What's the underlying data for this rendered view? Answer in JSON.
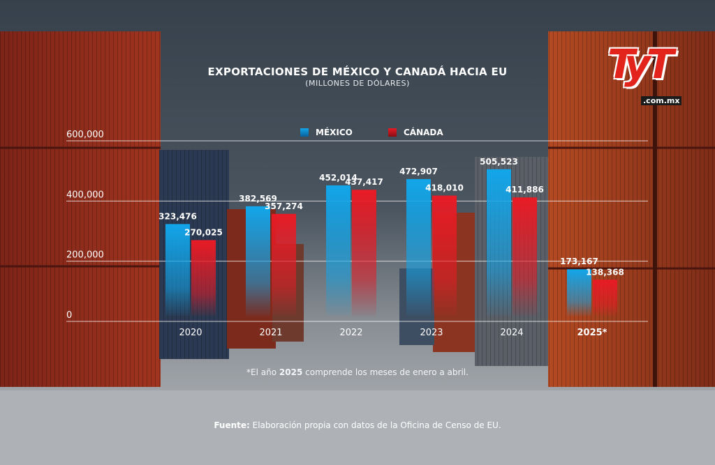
{
  "header": {
    "title": "EXPORTACIONES DE MÉXICO Y CANADÁ HACIA EU",
    "subtitle": "(MILLONES DE DÓLARES)"
  },
  "logo": {
    "brand": "TyT",
    "domain": ".com.mx"
  },
  "legend": [
    {
      "label": "MÉXICO",
      "color": "#12a3e6"
    },
    {
      "label": "CÁNADA",
      "color": "#e11b24"
    }
  ],
  "footer": {
    "note_pre": "*El año ",
    "note_bold": "2025",
    "note_post": " comprende los meses de enero a abril.",
    "source_label": "Fuente:",
    "source_text": " Elaboración propia con datos de la Oficina de Censo de EU."
  },
  "chart_data": {
    "type": "bar",
    "title": "EXPORTACIONES DE MÉXICO Y CANADÁ HACIA EU",
    "subtitle": "(MILLONES DE DÓLARES)",
    "categories": [
      "2020",
      "2021",
      "2022",
      "2023",
      "2024",
      "2025*"
    ],
    "series": [
      {
        "name": "MÉXICO",
        "values": [
          323476,
          382569,
          452014,
          472907,
          505523,
          173167
        ],
        "labels": [
          "323,476",
          "382,569",
          "452,014",
          "472,907",
          "505,523",
          "173,167"
        ],
        "color": "#12a3e6"
      },
      {
        "name": "CÁNADA",
        "values": [
          270025,
          357274,
          437417,
          418010,
          411886,
          138368
        ],
        "labels": [
          "270,025",
          "357,274",
          "437,417",
          "418,010",
          "411,886",
          "138,368"
        ],
        "color": "#e11b24"
      }
    ],
    "yticks": [
      0,
      200000,
      400000,
      600000
    ],
    "ytick_labels": [
      "0",
      "200,000",
      "400,000",
      "600,000"
    ],
    "ylim": [
      0,
      600000
    ],
    "bold_category": "2025*",
    "grid": true,
    "legend_position": "top-center"
  }
}
